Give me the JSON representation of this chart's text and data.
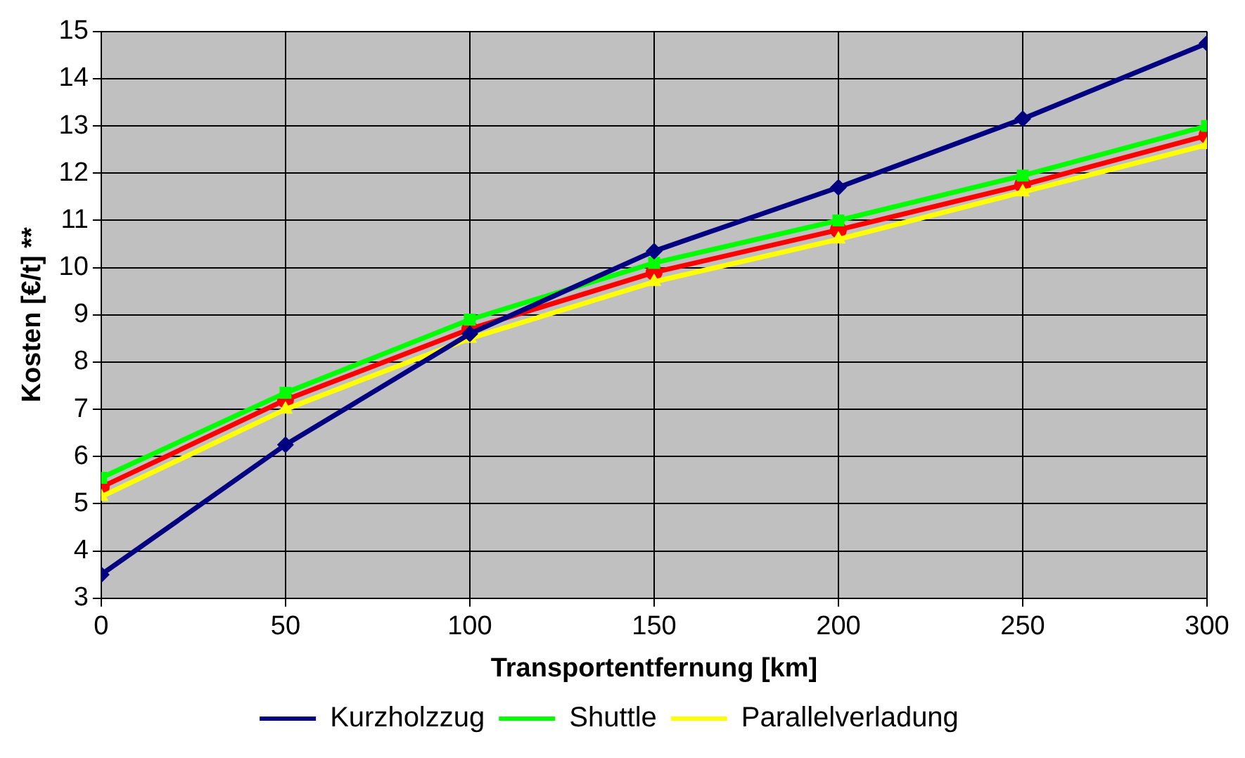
{
  "chart_data": {
    "type": "line",
    "xlabel": "Transportentfernung [km]",
    "ylabel": "Kosten [€/t] **",
    "x": [
      0,
      50,
      100,
      150,
      200,
      250,
      300
    ],
    "series": [
      {
        "name": "Kurzholzzug",
        "color": "#000080",
        "marker": "diamond",
        "values": [
          3.5,
          6.25,
          8.6,
          10.35,
          11.7,
          13.15,
          14.75
        ]
      },
      {
        "name": "Shuttle",
        "color": "#00ff00",
        "marker": "square",
        "values": [
          5.55,
          7.35,
          8.9,
          10.1,
          11.0,
          11.95,
          13.0
        ]
      },
      {
        "name": "Parallelverladung",
        "color": "#ffff00",
        "marker": "triangle",
        "values": [
          5.15,
          7.0,
          8.5,
          9.7,
          10.6,
          11.6,
          12.6
        ]
      },
      {
        "color": "#ff0000",
        "marker": "circle",
        "values": [
          5.35,
          7.2,
          8.7,
          9.9,
          10.8,
          11.75,
          12.8
        ]
      }
    ],
    "xlim": [
      0,
      300
    ],
    "xticks": [
      0,
      50,
      100,
      150,
      200,
      250,
      300
    ],
    "ylim": [
      3,
      15
    ],
    "yticks": [
      3,
      4,
      5,
      6,
      7,
      8,
      9,
      10,
      11,
      12,
      13,
      14,
      15
    ],
    "grid": true,
    "legend": "bottom",
    "line_style": "solid"
  }
}
